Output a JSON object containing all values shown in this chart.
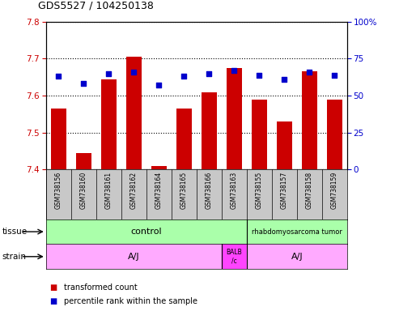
{
  "title": "GDS5527 / 104250138",
  "samples": [
    "GSM738156",
    "GSM738160",
    "GSM738161",
    "GSM738162",
    "GSM738164",
    "GSM738165",
    "GSM738166",
    "GSM738163",
    "GSM738155",
    "GSM738157",
    "GSM738158",
    "GSM738159"
  ],
  "bar_values": [
    7.565,
    7.445,
    7.645,
    7.705,
    7.41,
    7.565,
    7.61,
    7.675,
    7.59,
    7.53,
    7.665,
    7.59
  ],
  "bar_base": 7.4,
  "percentile_values": [
    63,
    58,
    65,
    66,
    57,
    63,
    65,
    67,
    64,
    61,
    66,
    64
  ],
  "ylim_left": [
    7.4,
    7.8
  ],
  "ylim_right": [
    0,
    100
  ],
  "yticks_left": [
    7.4,
    7.5,
    7.6,
    7.7,
    7.8
  ],
  "yticks_right": [
    0,
    25,
    50,
    75,
    100
  ],
  "bar_color": "#CC0000",
  "dot_color": "#0000CC",
  "bar_width": 0.6,
  "dot_size": 15,
  "tissue_control_color": "#AAFFAA",
  "tissue_rhabdo_color": "#AAFFAA",
  "strain_aj_color": "#FFAAFF",
  "strain_balb_color": "#FF44FF",
  "sample_bg_color": "#C8C8C8",
  "legend_bar_label": "transformed count",
  "legend_dot_label": "percentile rank within the sample",
  "bar_label_color": "#CC0000",
  "dot_label_color": "#0000CC",
  "n_control": 8,
  "balb_index": 7,
  "n_total": 12
}
